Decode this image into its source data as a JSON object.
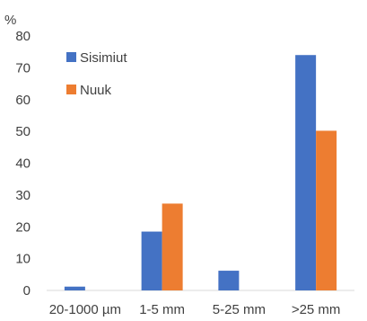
{
  "chart_data": {
    "type": "bar",
    "unit_label": "%",
    "categories": [
      "20-1000 µm",
      "1-5 mm",
      "5-25 mm",
      ">25 mm"
    ],
    "series": [
      {
        "name": "Sisimiut",
        "color": "#4472C4",
        "values": [
          1.2,
          18.5,
          6.2,
          74
        ]
      },
      {
        "name": "Nuuk",
        "color": "#ED7D31",
        "values": [
          0,
          27.3,
          0,
          50.2
        ]
      }
    ],
    "ylim": [
      0,
      80
    ],
    "yticks": [
      0,
      10,
      20,
      30,
      40,
      50,
      60,
      70,
      80
    ],
    "grid": false,
    "legend_position": "top-left"
  }
}
